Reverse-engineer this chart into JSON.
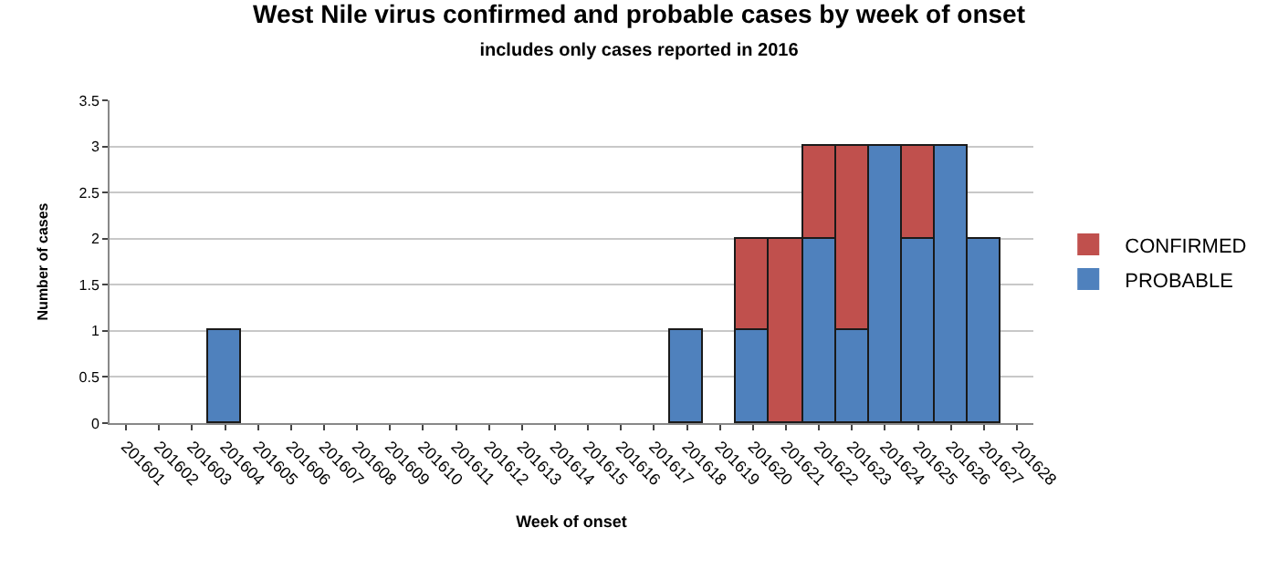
{
  "chart_data": {
    "type": "bar",
    "title": "West Nile virus confirmed and probable cases by week of onset",
    "subtitle": "includes only cases reported in 2016",
    "xlabel": "Week of onset",
    "ylabel": "Number of cases",
    "categories": [
      "201601",
      "201602",
      "201603",
      "201604",
      "201605",
      "201606",
      "201607",
      "201608",
      "201609",
      "201610",
      "201611",
      "201612",
      "201613",
      "201614",
      "201615",
      "201616",
      "201617",
      "201618",
      "201619",
      "201620",
      "201621",
      "201622",
      "201623",
      "201624",
      "201625",
      "201626",
      "201627",
      "201628"
    ],
    "series": [
      {
        "name": "PROBABLE",
        "color": "#4f81bd",
        "values": [
          0,
          0,
          0,
          1,
          0,
          0,
          0,
          0,
          0,
          0,
          0,
          0,
          0,
          0,
          0,
          0,
          0,
          1,
          0,
          1,
          0,
          2,
          1,
          3,
          2,
          3,
          2,
          0
        ]
      },
      {
        "name": "CONFIRMED",
        "color": "#c0504d",
        "values": [
          0,
          0,
          0,
          0,
          0,
          0,
          0,
          0,
          0,
          0,
          0,
          0,
          0,
          0,
          0,
          0,
          0,
          0,
          0,
          1,
          2,
          1,
          2,
          0,
          1,
          0,
          0,
          0
        ]
      }
    ],
    "stacked": true,
    "ylim": [
      0,
      3.5
    ],
    "yticks": [
      0,
      0.5,
      1,
      1.5,
      2,
      2.5,
      3,
      3.5
    ],
    "grid": "y",
    "legend": "right"
  }
}
